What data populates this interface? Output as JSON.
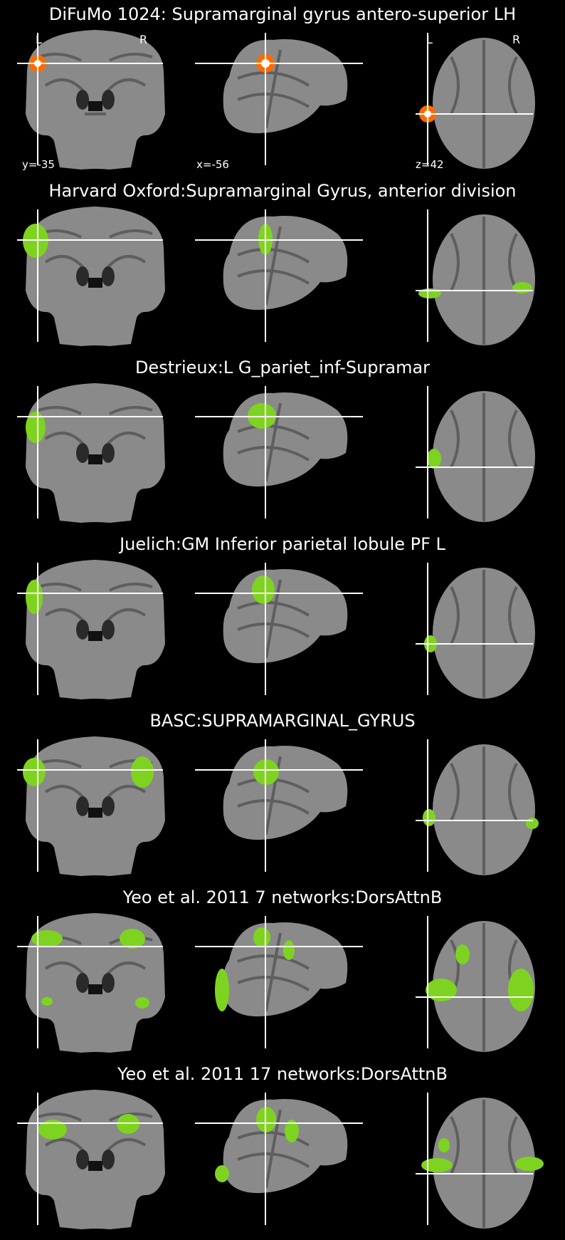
{
  "figure": {
    "background": "#000000",
    "overlay_colors": {
      "atlas_region": "#7ed321",
      "difumo_hot": "#ff6a00",
      "difumo_core": "#ffffff"
    },
    "panels": [
      {
        "title": "DiFuMo 1024: Supramarginal gyrus antero-superior LH",
        "overlay": "hot-blob",
        "labels": {
          "left": "L",
          "right": "R",
          "left_axial": "L",
          "right_axial": "R",
          "coronal_coord": "y=-35",
          "sagittal_coord": "x=-56",
          "axial_coord": "z=42"
        }
      },
      {
        "title": "Harvard Oxford:Supramarginal Gyrus, anterior division",
        "overlay": "green-region"
      },
      {
        "title": "Destrieux:L G_pariet_inf-Supramar",
        "overlay": "green-region"
      },
      {
        "title": "Juelich:GM Inferior parietal lobule PF L",
        "overlay": "green-region"
      },
      {
        "title": "BASC:SUPRAMARGINAL_GYRUS",
        "overlay": "green-region"
      },
      {
        "title": "Yeo et al. 2011 7 networks:DorsAttnB",
        "overlay": "green-region"
      },
      {
        "title": "Yeo et al. 2011 17 networks:DorsAttnB",
        "overlay": "green-region"
      }
    ]
  }
}
